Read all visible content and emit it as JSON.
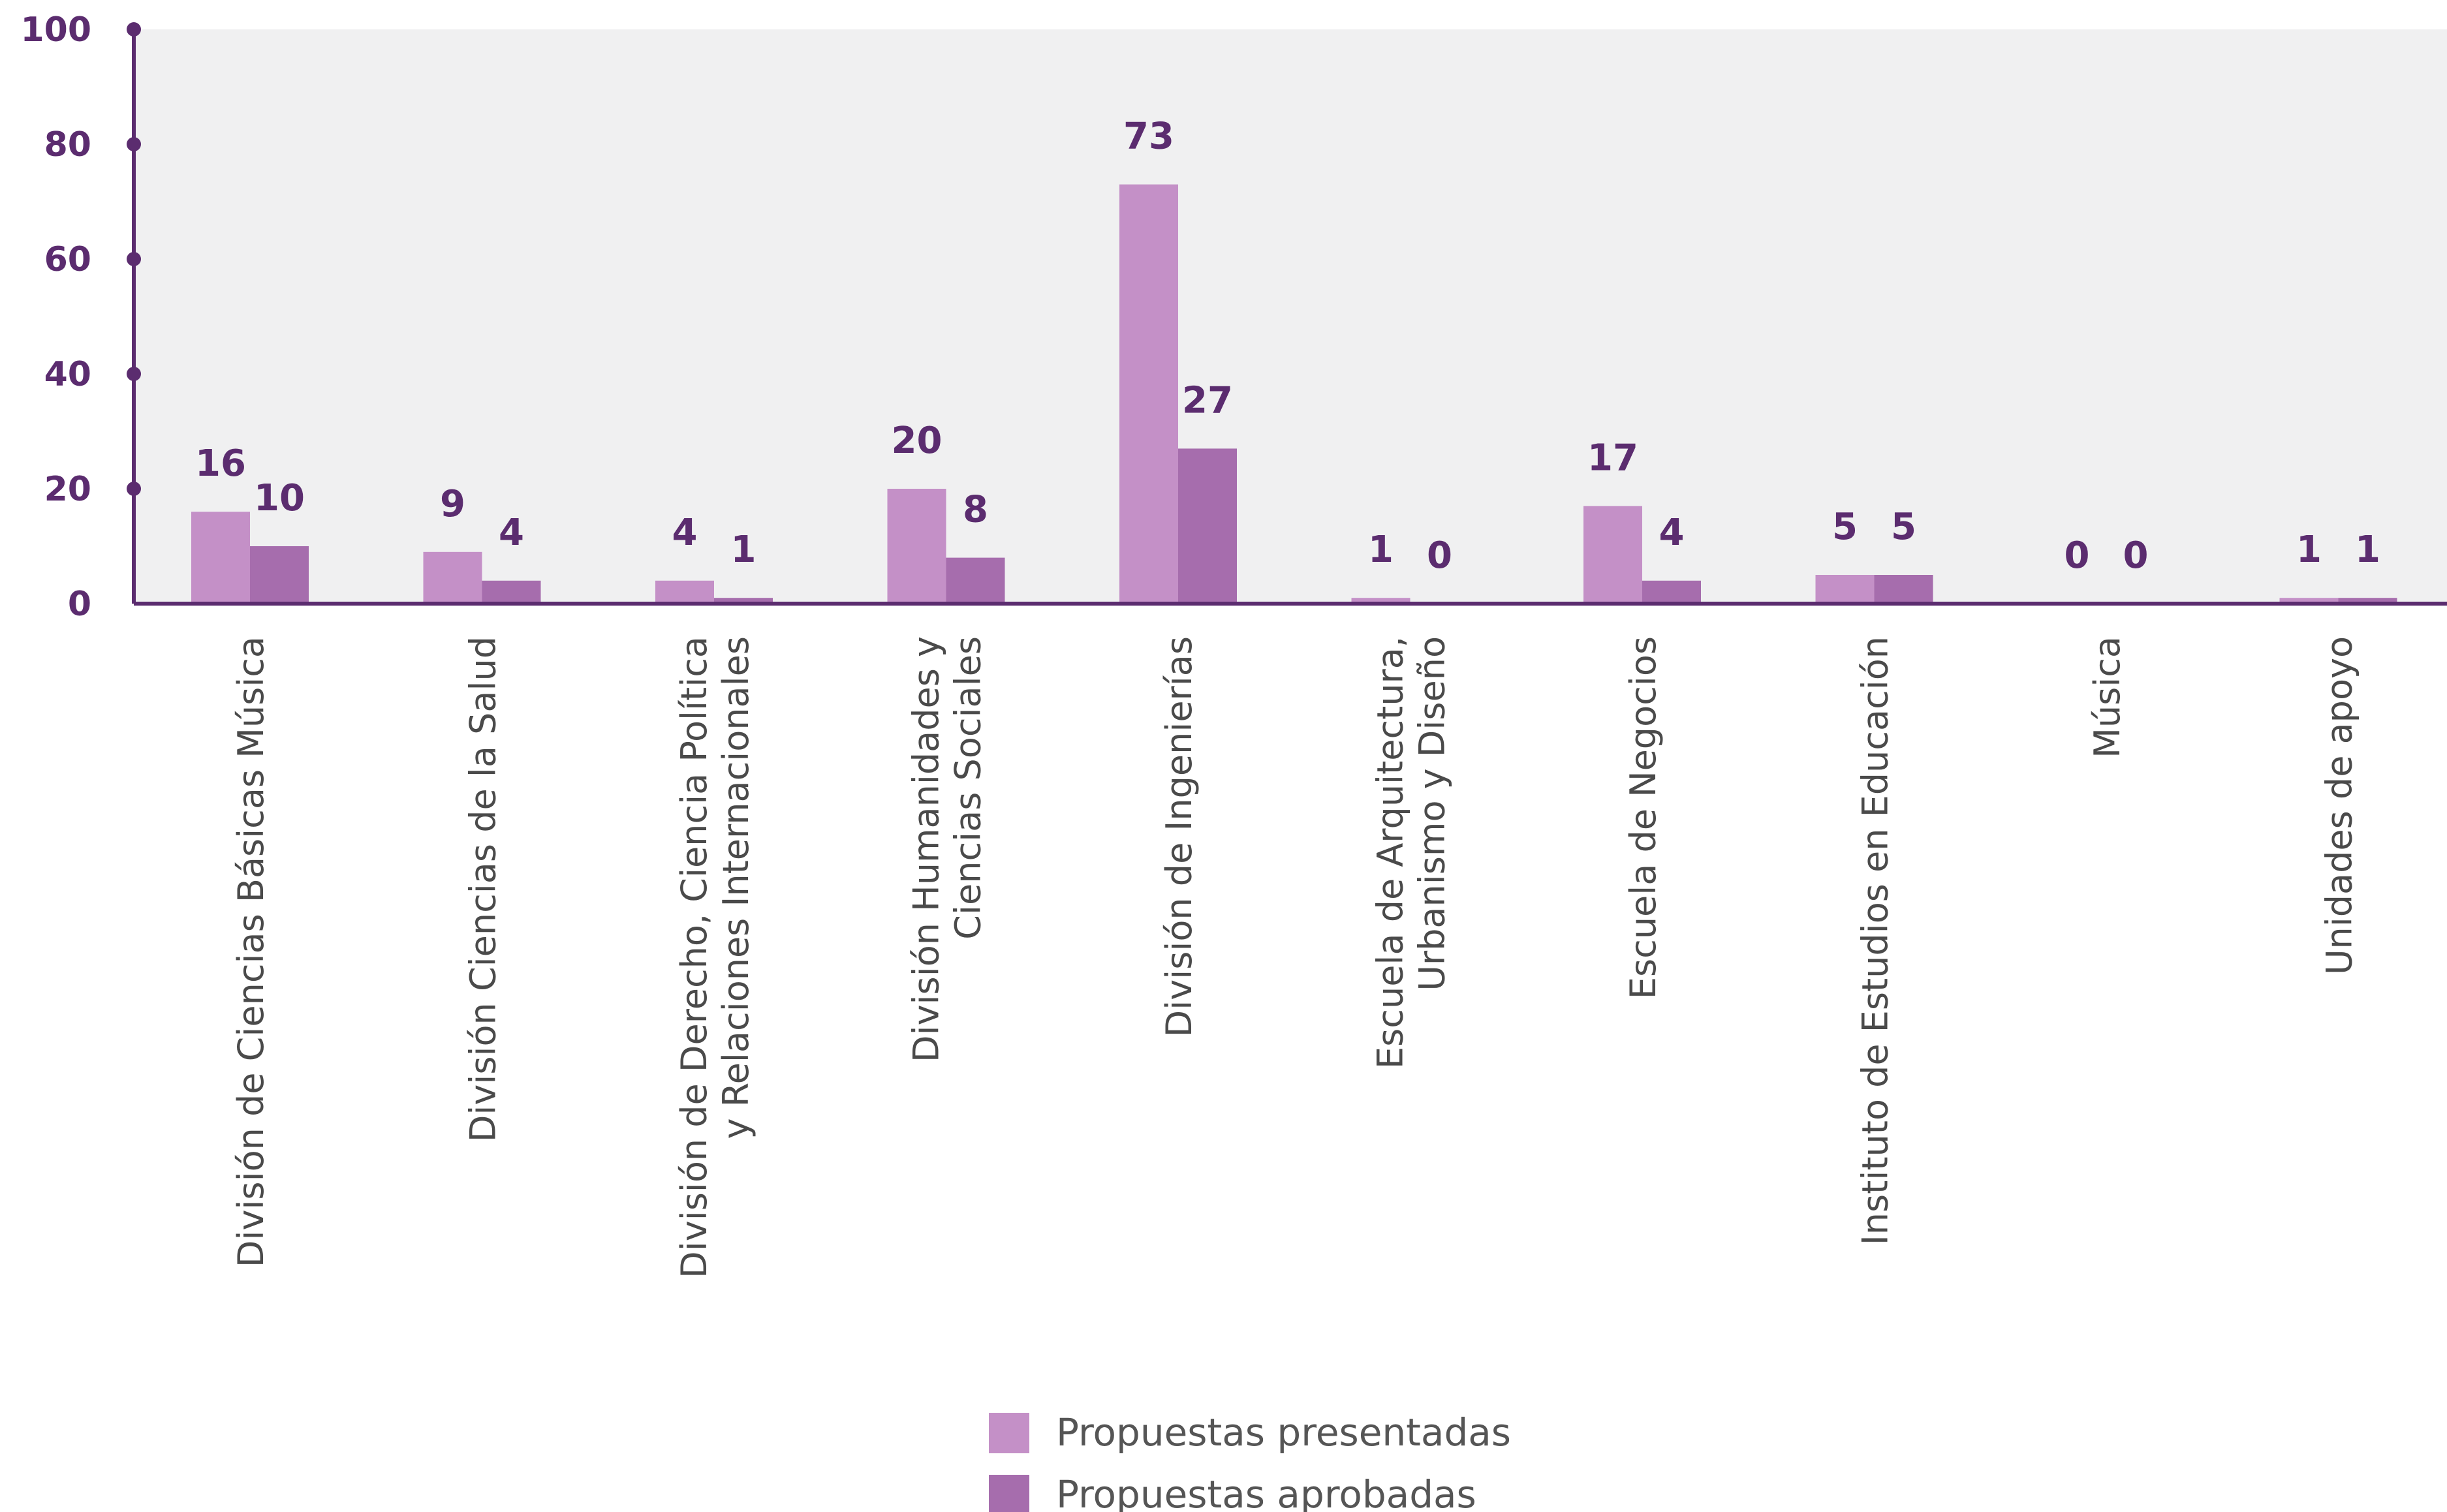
{
  "chart_data": {
    "type": "bar",
    "categories": [
      [
        "División de Ciencias Básicas Música"
      ],
      [
        "División Ciencias de la Salud"
      ],
      [
        "División de Derecho, Ciencia Política",
        "y Relaciones Internacionales"
      ],
      [
        "División Humanidades y",
        "Ciencias Sociales"
      ],
      [
        "División de Ingenierías"
      ],
      [
        "Escuela de Arquitectura,",
        "Urbanismo y Diseño"
      ],
      [
        "Escuela de Negocios"
      ],
      [
        "Instituto de Estudios en Educación"
      ],
      [
        "Música"
      ],
      [
        "Unidades de apoyo"
      ]
    ],
    "series": [
      {
        "name": "Propuestas presentadas",
        "color": "#c490c7",
        "values": [
          16,
          9,
          4,
          20,
          73,
          1,
          17,
          5,
          0,
          1
        ]
      },
      {
        "name": "Propuestas aprobadas",
        "color": "#a66dad",
        "values": [
          10,
          4,
          1,
          8,
          27,
          0,
          4,
          5,
          0,
          1
        ]
      }
    ],
    "ylim": [
      0,
      100
    ],
    "yticks": [
      0,
      20,
      40,
      60,
      80,
      100
    ],
    "xlabel": "",
    "ylabel": "",
    "title": "",
    "grid": false,
    "legend_position": "bottom-center",
    "colors": {
      "axis": "#5b2c6f",
      "plot_background": "#f0f0f1"
    }
  }
}
